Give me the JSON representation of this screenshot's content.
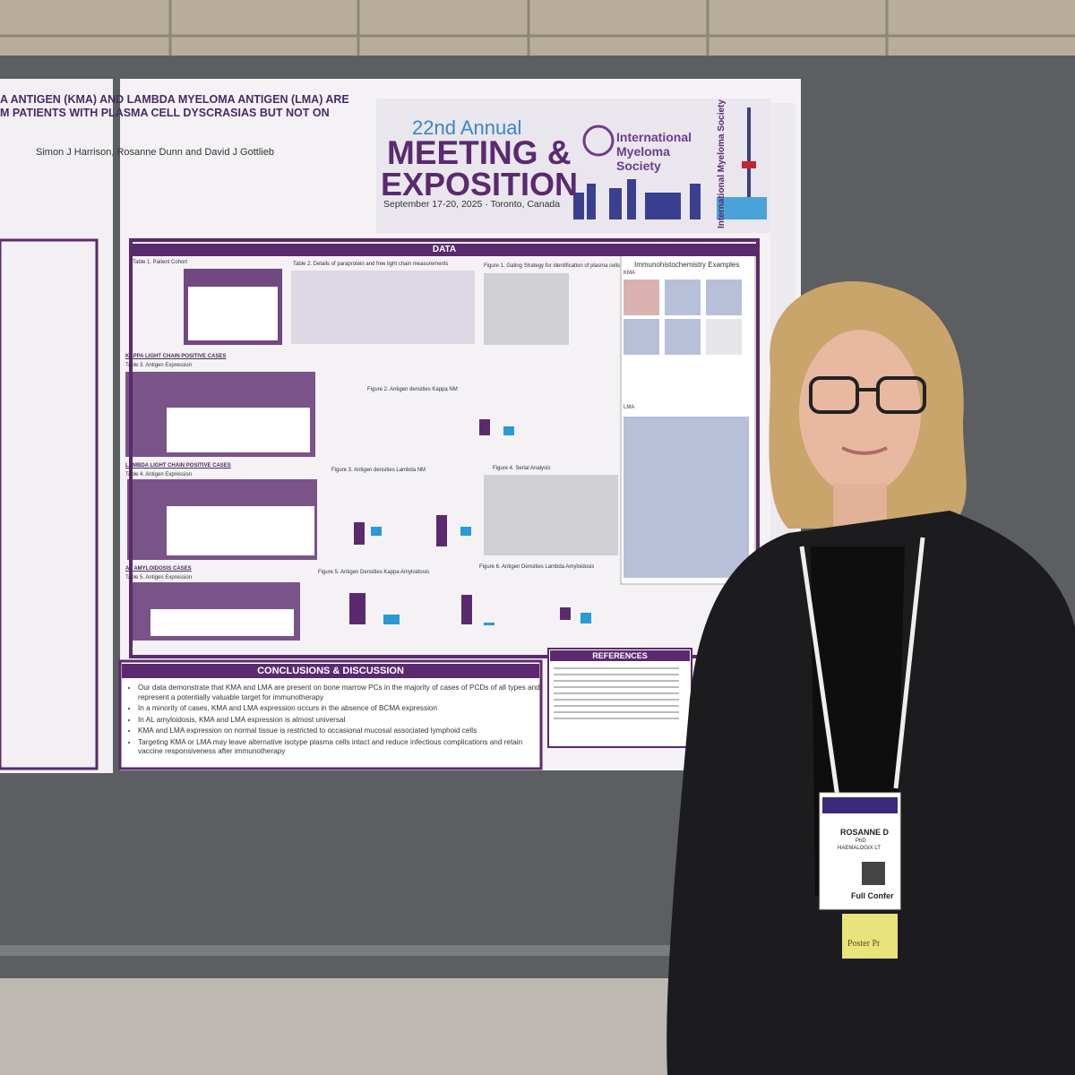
{
  "poster": {
    "title_lines": [
      "A ANTIGEN (KMA) AND LAMBDA MYELOMA ANTIGEN (LMA) ARE",
      "M PATIENTS WITH PLASMA CELL DYSCRASIAS BUT NOT ON"
    ],
    "authors": "Simon J Harrison, Rosanne Dunn and David J Gottlieb",
    "banner": {
      "edition": "22nd Annual",
      "line1": "MEETING &",
      "line2": "EXPOSITION",
      "dates": "September 17-20, 2025 · Toronto, Canada",
      "society": "International Myeloma Society",
      "side": "International Myeloma Society"
    },
    "data_header": "DATA",
    "labels": {
      "table1": "Table 1. Patient Cohort",
      "table2": "Table 2. Details of paraprotein and free light chain measurements",
      "figure1": "Figure 1. Gating Strategy for identification of plasma cells",
      "ihc": "Immunohistochemistry Examples",
      "kma": "KMA",
      "lma": "LMA",
      "kappa": "KAPPA LIGHT CHAIN POSITIVE CASES",
      "table3": "Table 3. Antigen Expression",
      "figure2": "Figure 2. Antigen densities Kappa NM",
      "lambda": "LAMBDA LIGHT CHAIN POSITIVE CASES",
      "table4": "Table 4. Antigen Expression",
      "figure3": "Figure 3. Antigen densities Lambda NM",
      "figure4": "Figure 4. Serial Analysis",
      "amyloid": "AL AMYLOIDOSIS CASES",
      "table5": "Table 5. Antigen Expression",
      "figure5": "Figure 5. Antigen Densities Kappa Amyloidosis",
      "figure6": "Figure 6. Antigen Densities Lambda Amyloidosis"
    },
    "conclusions": {
      "title": "CONCLUSIONS & DISCUSSION",
      "bullets": [
        "Our data demonstrate that KMA and LMA are present on bone marrow PCs in the majority of cases of PCDs of all types and represent a potentially valuable target for immunotherapy",
        "In a minority of cases, KMA and LMA expression occurs in the absence of BCMA expression",
        "In AL amyloidosis, KMA and LMA expression is almost universal",
        "KMA and LMA expression on normal tissue is restricted to occasional mucosal associated lymphoid cells",
        "Targeting KMA or LMA may leave alternative isotype plasma cells intact and reduce infectious complications and retain vaccine responsiveness after immunotherapy"
      ]
    },
    "references_title": "REFERENCES"
  },
  "badge": {
    "name": "ROSANNE D",
    "degree": "PhD",
    "affiliation": "HAEMALOGIX LT",
    "pass": "Full Confer",
    "ribbon": "Poster Pr"
  }
}
